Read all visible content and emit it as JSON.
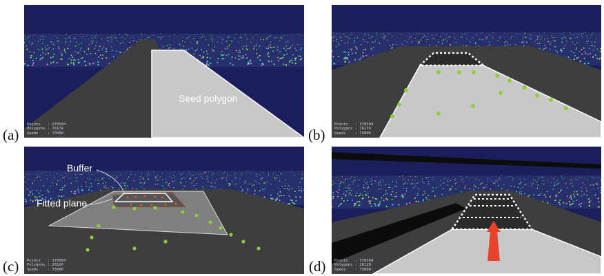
{
  "panels": {
    "a": {
      "label": "(a)",
      "annotation": "Seed polygon",
      "hud": {
        "points": "Points   : 370504",
        "polygons": "Polygons : 76174",
        "seeds": "Seeds    : 75000"
      }
    },
    "b": {
      "label": "(b)",
      "hud": {
        "points": "Points   : 370504",
        "polygons": "Polygons : 76174",
        "seeds": "Seeds    : 75000"
      }
    },
    "c": {
      "label": "(c)",
      "buffer_label": "Buffer",
      "fitted_label": "Fitted plane",
      "hud": {
        "points": "Points   : 370504",
        "polygons": "Polygons : 26120",
        "seeds": "Seeds    : 75000"
      }
    },
    "d": {
      "label": "(d)",
      "hud": {
        "points": "Points   : 370504",
        "polygons": "Polygons : 26120",
        "seeds": "Seeds    : 75000"
      }
    }
  },
  "colors": {
    "sky": "#1a1f5c",
    "road": "#3e3e3e",
    "seed": "#c8c8c8",
    "point": "#8ccf3c",
    "arrow": "#e8432a"
  }
}
